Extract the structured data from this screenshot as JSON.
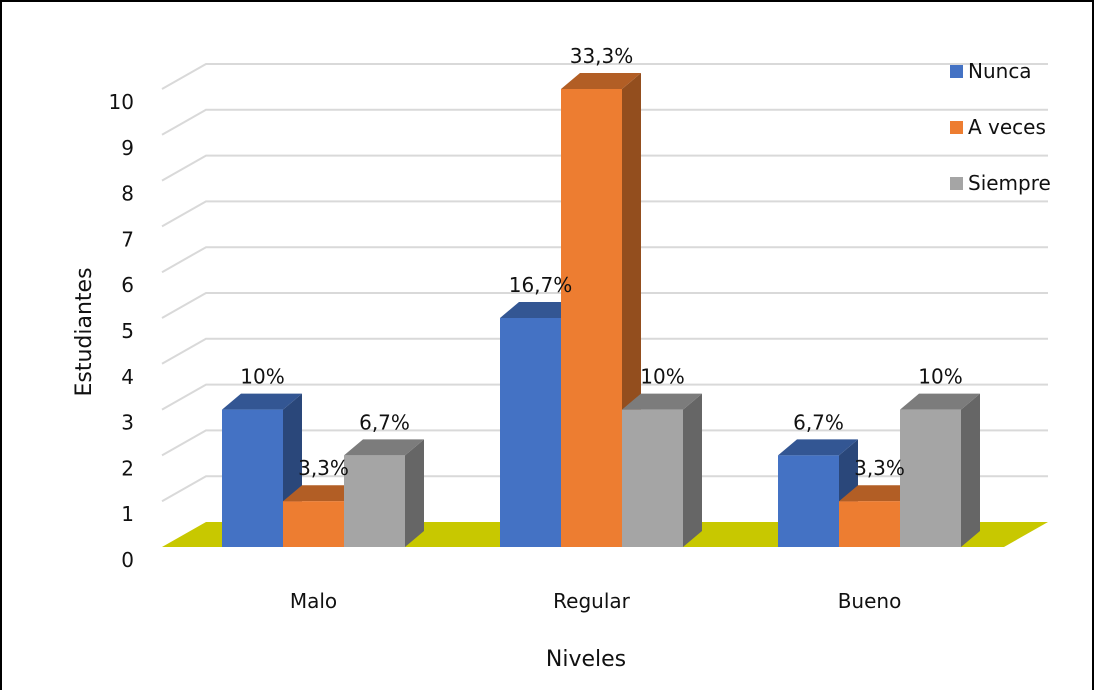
{
  "chart_data": {
    "type": "bar",
    "style": "3d-clustered-column",
    "categories": [
      "Malo",
      "Regular",
      "Bueno"
    ],
    "series": [
      {
        "name": "Nunca",
        "values": [
          3,
          5,
          2
        ],
        "labels": [
          "10%",
          "16,7%",
          "6,7%"
        ],
        "color": "#4472C4"
      },
      {
        "name": "A veces",
        "values": [
          1,
          10,
          1
        ],
        "labels": [
          "3,3%",
          "33,3%",
          "3,3%"
        ],
        "color": "#ED7D31"
      },
      {
        "name": "Siempre",
        "values": [
          2,
          3,
          3
        ],
        "labels": [
          "6,7%",
          "10%",
          "10%"
        ],
        "color": "#A5A5A5"
      }
    ],
    "yticks": [
      "0",
      "1",
      "2",
      "3",
      "4",
      "5",
      "6",
      "7",
      "8",
      "9",
      "10"
    ],
    "ylim": [
      0,
      10
    ],
    "xlabel": "Niveles",
    "ylabel": "Estudiantes",
    "grid": true,
    "legend_position": "top-right",
    "floor_color": "#C8C800"
  }
}
